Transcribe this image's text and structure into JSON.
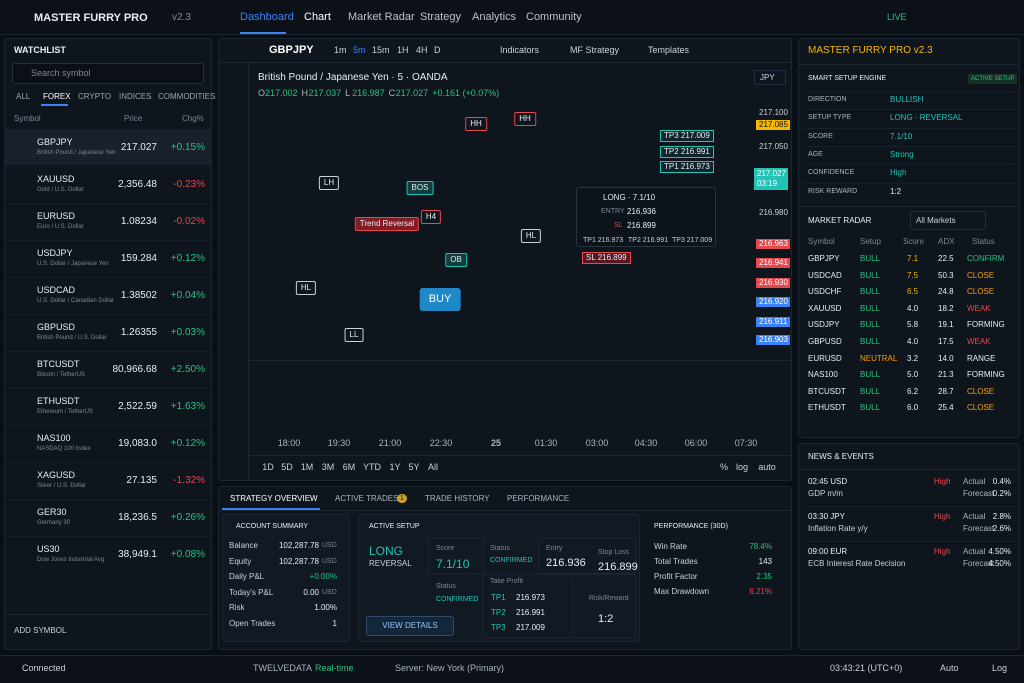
{
  "header": {
    "brand": "MASTER FURRY PRO",
    "version": "v2.3",
    "nav": [
      "Dashboard",
      "Chart",
      "Market Radar",
      "Strategy",
      "Analytics",
      "Community"
    ],
    "status": "LIVE"
  },
  "watchlist": {
    "title": "WATCHLIST",
    "search_placeholder": "Search symbol",
    "tabs": [
      "ALL",
      "FOREX",
      "CRYPTO",
      "INDICES",
      "COMMODITIES"
    ],
    "columns": [
      "Symbol",
      "Price",
      "Chg%"
    ],
    "rows": [
      {
        "symbol": "GBPJPY",
        "name": "British Pound / Japanese Yen",
        "price": "217.027",
        "change": "+0.15%"
      },
      {
        "symbol": "XAUUSD",
        "name": "Gold / U.S. Dollar",
        "price": "2,356.48",
        "change": "-0.23%"
      },
      {
        "symbol": "EURUSD",
        "name": "Euro / U.S. Dollar",
        "price": "1.08234",
        "change": "-0.02%"
      },
      {
        "symbol": "USDJPY",
        "name": "U.S. Dollar / Japanese Yen",
        "price": "159.284",
        "change": "+0.12%"
      },
      {
        "symbol": "USDCAD",
        "name": "U.S. Dollar / Canadian Dollar",
        "price": "1.38502",
        "change": "+0.04%"
      },
      {
        "symbol": "GBPUSD",
        "name": "British Pound / U.S. Dollar",
        "price": "1.26355",
        "change": "+0.03%"
      },
      {
        "symbol": "BTCUSDT",
        "name": "Bitcoin / TetherUS",
        "price": "80,966.68",
        "change": "+2.50%"
      },
      {
        "symbol": "ETHUSDT",
        "name": "Ethereum / TetherUS",
        "price": "2,522.59",
        "change": "+1.63%"
      },
      {
        "symbol": "NAS100",
        "name": "NASDAQ 100 Index",
        "price": "19,083.0",
        "change": "+0.12%"
      },
      {
        "symbol": "XAGUSD",
        "name": "Silver / U.S. Dollar",
        "price": "27.135",
        "change": "-1.32%"
      },
      {
        "symbol": "GER30",
        "name": "Germany 30",
        "price": "18,236.5",
        "change": "+0.26%"
      },
      {
        "symbol": "US30",
        "name": "Dow Jones Industrial Avg",
        "price": "38,949.1",
        "change": "+0.08%"
      }
    ],
    "add": "ADD SYMBOL"
  },
  "chart": {
    "symbol": "GBPJPY",
    "timeframes": [
      "1m",
      "5m",
      "15m",
      "1H",
      "4H",
      "D"
    ],
    "tools": [
      "Indicators",
      "MF Strategy",
      "Templates"
    ],
    "title": "British Pound / Japanese Yen · 5 · OANDA",
    "currency": "JPY",
    "ohlc": [
      {
        "label": "O",
        "value": "217.002"
      },
      {
        "label": "H",
        "value": "217.037"
      },
      {
        "label": "L",
        "value": "216.987"
      },
      {
        "label": "C",
        "value": "217.027"
      }
    ],
    "change": "+0.161 (+0.07%)",
    "price_scale": [
      "217.100",
      "217.085",
      "217.050",
      "216.980",
      "216.963",
      "216.941",
      "216.930",
      "216.920",
      "216.911",
      "216.903"
    ],
    "current": {
      "price": "217.027",
      "time": "03:19"
    },
    "annotations": [
      "HH",
      "HH",
      "LH",
      "BOS",
      "Trend Reversal",
      "H4",
      "HL",
      "HL",
      "OB",
      "LL"
    ],
    "signal": "BUY",
    "levels": [
      "TP3 217.009",
      "TP2 216.991",
      "TP1 216.973",
      "SL 216.899"
    ],
    "popup": {
      "title": "LONG · 7.1/10",
      "entry_label": "ENTRY",
      "entry": "216.936",
      "sl_label": "SL",
      "sl": "216.899",
      "targets": [
        "TP1 216.973",
        "TP2 216.991",
        "TP3 217.009"
      ]
    },
    "time_axis": [
      "18:00",
      "19:30",
      "21:00",
      "22:30",
      "25",
      "01:30",
      "03:00",
      "04:30",
      "06:00",
      "07:30"
    ],
    "ranges": [
      "1D",
      "5D",
      "1M",
      "3M",
      "6M",
      "YTD",
      "1Y",
      "5Y",
      "All"
    ],
    "scale_options": [
      "%",
      "log",
      "auto"
    ]
  },
  "bottom": {
    "tabs": [
      "STRATEGY OVERVIEW",
      "ACTIVE TRADES",
      "TRADE HISTORY",
      "PERFORMANCE"
    ],
    "active_trades_badge": "1",
    "account": {
      "title": "ACCOUNT SUMMARY",
      "rows": [
        {
          "label": "Balance",
          "value": "102,287.78",
          "unit": "USD"
        },
        {
          "label": "Equity",
          "value": "102,287.78",
          "unit": "USD"
        },
        {
          "label": "Daily P&L",
          "value": "+0.00%"
        },
        {
          "label": "Today's P&L",
          "value": "0.00",
          "unit": "USD"
        },
        {
          "label": "Risk",
          "value": "1.00%"
        },
        {
          "label": "Open Trades",
          "value": "1"
        }
      ]
    },
    "setup": {
      "title": "ACTIVE SETUP",
      "direction": "LONG",
      "type": "REVERSAL",
      "score_label": "Score",
      "score": "7.1/10",
      "status_label": "Status",
      "status": "CONFIRMED",
      "entry_label": "Entry",
      "entry": "216.936",
      "stop_label": "Stop Loss",
      "stop": "216.899",
      "status2_label": "Status",
      "status2": "CONFIRMED",
      "tp_label": "Take Profit",
      "targets": [
        {
          "label": "TP1",
          "value": "216.973"
        },
        {
          "label": "TP2",
          "value": "216.991"
        },
        {
          "label": "TP3",
          "value": "217.009"
        }
      ],
      "rr_label": "Risk/Reward",
      "rr": "1:2",
      "button": "VIEW DETAILS"
    },
    "performance": {
      "title": "PERFORMANCE (30D)",
      "rows": [
        {
          "label": "Win Rate",
          "value": "78.4%"
        },
        {
          "label": "Total Trades",
          "value": "143"
        },
        {
          "label": "Profit Factor",
          "value": "2.35"
        },
        {
          "label": "Max Drawdown",
          "value": "6.21%"
        }
      ]
    }
  },
  "right": {
    "title": "MASTER FURRY PRO v2.3",
    "engine": {
      "title": "SMART SETUP ENGINE",
      "badge": "ACTIVE SETUP",
      "rows": [
        {
          "label": "DIRECTION",
          "value": "BULLISH"
        },
        {
          "label": "SETUP TYPE",
          "value": "LONG · REVERSAL"
        },
        {
          "label": "SCORE",
          "value": "7.1/10"
        },
        {
          "label": "AGE",
          "value": "Strong"
        },
        {
          "label": "CONFIDENCE",
          "value": "High"
        },
        {
          "label": "RISK REWARD",
          "value": "1:2"
        }
      ]
    },
    "radar": {
      "title": "MARKET RADAR",
      "filter": "All Markets",
      "columns": [
        "Symbol",
        "Setup",
        "Score",
        "ADX",
        "Status"
      ],
      "rows": [
        [
          "GBPJPY",
          "BULL",
          "7.1",
          "22.5",
          "CONFIRM"
        ],
        [
          "USDCAD",
          "BULL",
          "7.5",
          "50.3",
          "CLOSE"
        ],
        [
          "USDCHF",
          "BULL",
          "6.5",
          "24.8",
          "CLOSE"
        ],
        [
          "XAUUSD",
          "BULL",
          "4.0",
          "18.2",
          "WEAK"
        ],
        [
          "USDJPY",
          "BULL",
          "5.8",
          "19.1",
          "FORMING"
        ],
        [
          "GBPUSD",
          "BULL",
          "4.0",
          "17.5",
          "WEAK"
        ],
        [
          "EURUSD",
          "NEUTRAL",
          "3.2",
          "14.0",
          "RANGE"
        ],
        [
          "NAS100",
          "BULL",
          "5.0",
          "21.3",
          "FORMING"
        ],
        [
          "BTCUSDT",
          "BULL",
          "6.2",
          "28.7",
          "CLOSE"
        ],
        [
          "ETHUSDT",
          "BULL",
          "6.0",
          "25.4",
          "CLOSE"
        ]
      ]
    },
    "news": {
      "title": "NEWS & EVENTS",
      "items": [
        {
          "time": "02:45 USD",
          "event": "GDP m/m",
          "impact": "High",
          "actual_label": "Actual",
          "actual": "0.4%",
          "forecast_label": "Forecast",
          "forecast": "0.2%"
        },
        {
          "time": "03:30 JPY",
          "event": "Inflation Rate y/y",
          "impact": "High",
          "actual_label": "Actual",
          "actual": "2.8%",
          "forecast_label": "Forecast",
          "forecast": "2.6%"
        },
        {
          "time": "09:00 EUR",
          "event": "ECB Interest Rate Decision",
          "impact": "High",
          "actual_label": "Actual",
          "actual": "4.50%",
          "forecast_label": "Forecast",
          "forecast": "4.50%"
        }
      ]
    }
  },
  "footer": {
    "connection": "Connected",
    "provider": "TWELVEDATA",
    "mode": "Real-time",
    "server": "Server: New York (Primary)",
    "clock": "03:43:21 (UTC+0)",
    "auto": "Auto",
    "log": "Log"
  }
}
